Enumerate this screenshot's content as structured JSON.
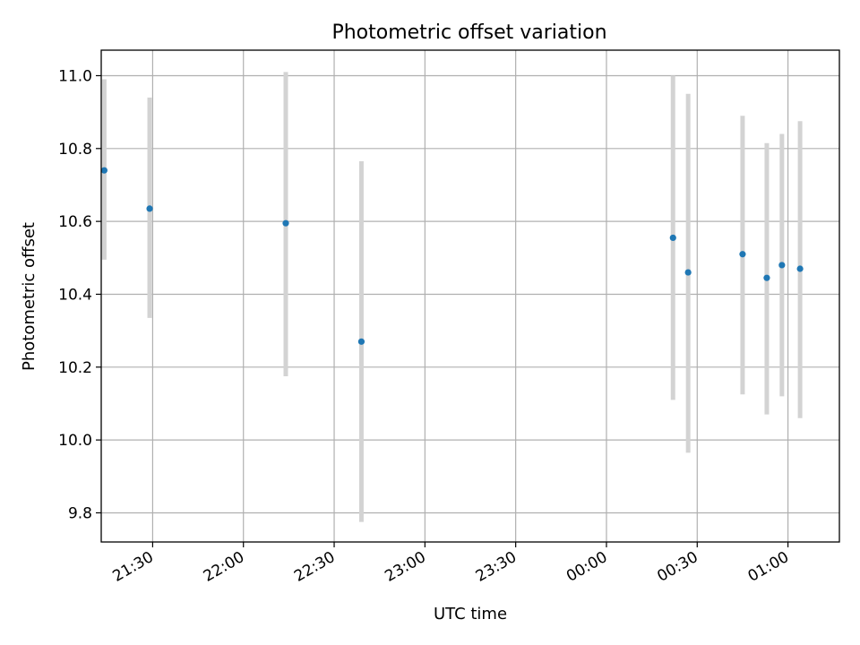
{
  "chart_data": {
    "type": "scatter",
    "title": "Photometric offset variation",
    "xlabel": "UTC time",
    "ylabel": "Photometric offset",
    "x_unit": "UTC time (HH:MM)",
    "xlim": [
      "21:13",
      "01:17"
    ],
    "ylim": [
      9.72,
      11.07
    ],
    "x_ticks": [
      "21:30",
      "22:00",
      "22:30",
      "23:00",
      "23:30",
      "00:00",
      "00:30",
      "01:00"
    ],
    "y_ticks": [
      "9.8",
      "10.0",
      "10.2",
      "10.4",
      "10.6",
      "10.8",
      "11.0"
    ],
    "grid": true,
    "point_color": "#1f77b4",
    "errorbar_color": "#d3d3d3",
    "series": [
      {
        "points": [
          {
            "t": "21:14",
            "y": 10.74,
            "lo": 10.495,
            "hi": 10.99
          },
          {
            "t": "21:29",
            "y": 10.635,
            "lo": 10.335,
            "hi": 10.94
          },
          {
            "t": "22:14",
            "y": 10.595,
            "lo": 10.175,
            "hi": 11.01
          },
          {
            "t": "22:39",
            "y": 10.27,
            "lo": 9.775,
            "hi": 10.765
          },
          {
            "t": "00:22",
            "y": 10.555,
            "lo": 10.11,
            "hi": 11.0
          },
          {
            "t": "00:27",
            "y": 10.46,
            "lo": 9.965,
            "hi": 10.95
          },
          {
            "t": "00:45",
            "y": 10.51,
            "lo": 10.125,
            "hi": 10.89
          },
          {
            "t": "00:53",
            "y": 10.445,
            "lo": 10.07,
            "hi": 10.815
          },
          {
            "t": "00:58",
            "y": 10.48,
            "lo": 10.12,
            "hi": 10.84
          },
          {
            "t": "01:04",
            "y": 10.47,
            "lo": 10.06,
            "hi": 10.875
          }
        ]
      }
    ]
  }
}
